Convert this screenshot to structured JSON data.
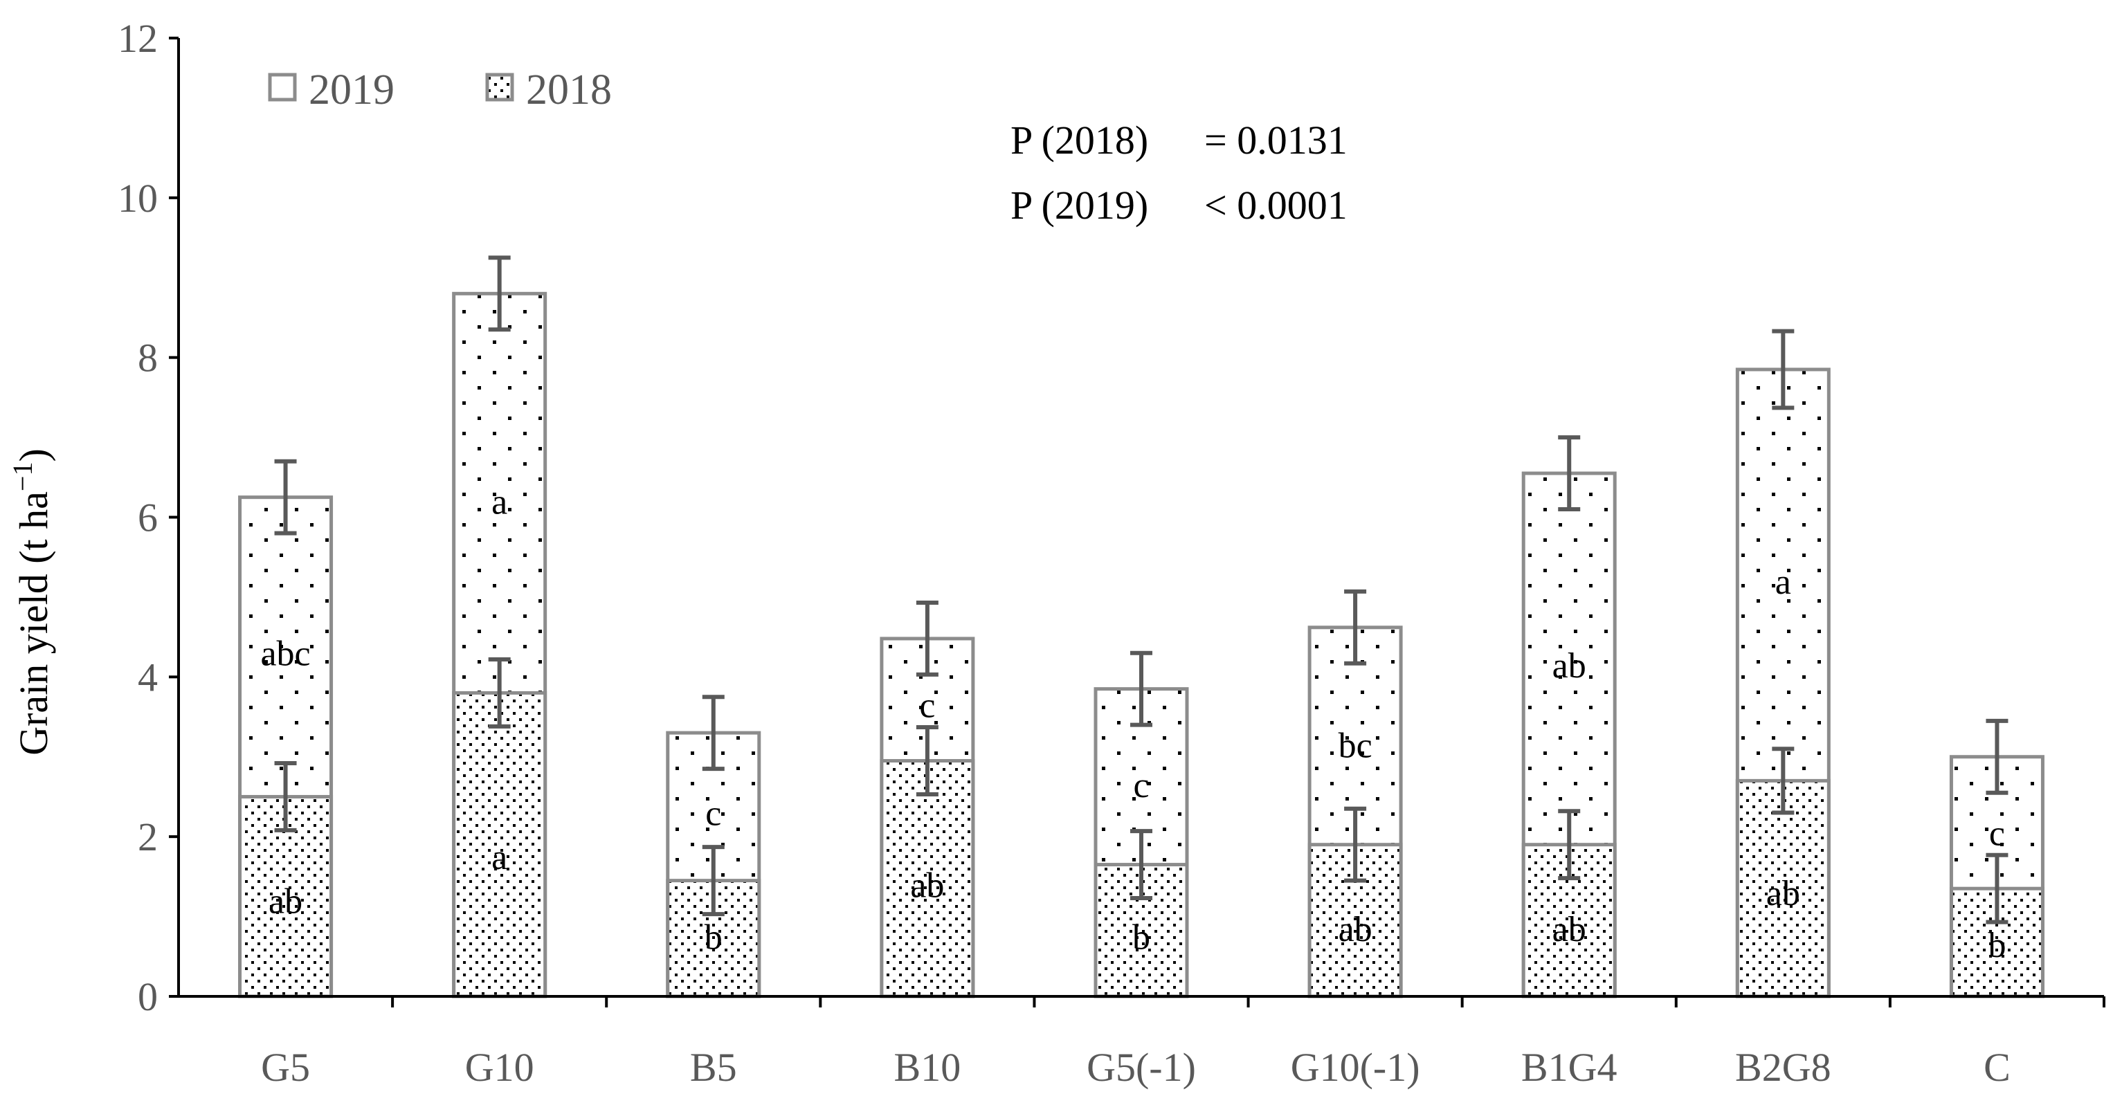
{
  "chart_data": {
    "type": "bar",
    "stacked": true,
    "title": "",
    "xlabel": "",
    "ylabel": "Grain yield (t ha",
    "ylabel_superscript": "−1",
    "ylabel_close": ")",
    "ylim": [
      0,
      12
    ],
    "yticks": [
      0,
      2,
      4,
      6,
      8,
      10,
      12
    ],
    "grid": false,
    "legend_position": "top-left",
    "categories": [
      "G5",
      "G10",
      "B5",
      "B10",
      "G5(-1)",
      "G10(-1)",
      "B1G4",
      "B2G8",
      "C"
    ],
    "series": [
      {
        "name": "2018",
        "pattern": "dense-dots",
        "values": [
          2.5,
          3.8,
          1.45,
          2.95,
          1.65,
          1.9,
          1.9,
          2.7,
          1.35
        ],
        "errors": [
          0.42,
          0.42,
          0.42,
          0.42,
          0.42,
          0.45,
          0.42,
          0.4,
          0.42
        ],
        "letters": [
          "ab",
          "a",
          "b",
          "ab",
          "b",
          "ab",
          "ab",
          "ab",
          "b"
        ],
        "letter_y": [
          1.2,
          1.75,
          0.75,
          1.4,
          0.75,
          0.85,
          0.85,
          1.3,
          0.65
        ]
      },
      {
        "name": "2019",
        "pattern": "sparse-dots",
        "values": [
          6.25,
          8.8,
          3.3,
          4.48,
          3.85,
          4.62,
          6.55,
          7.85,
          3.0
        ],
        "errors": [
          0.45,
          0.45,
          0.45,
          0.45,
          0.45,
          0.45,
          0.45,
          0.48,
          0.45
        ],
        "letters": [
          "abc",
          "a",
          "c",
          "c",
          "c",
          "bc",
          "ab",
          "a",
          "c"
        ],
        "letter_y": [
          4.3,
          6.2,
          2.3,
          3.65,
          2.65,
          3.15,
          4.15,
          5.2,
          2.05
        ]
      }
    ],
    "annotations": [
      {
        "label": "P (2018)",
        "operator": "= 0.0131"
      },
      {
        "label": "P (2019)",
        "operator": "< 0.0001"
      }
    ],
    "colors": {
      "bar_outline": "#8c8c8c",
      "error_bar": "#595959",
      "axis": "#000000",
      "dots": "#000000"
    }
  }
}
